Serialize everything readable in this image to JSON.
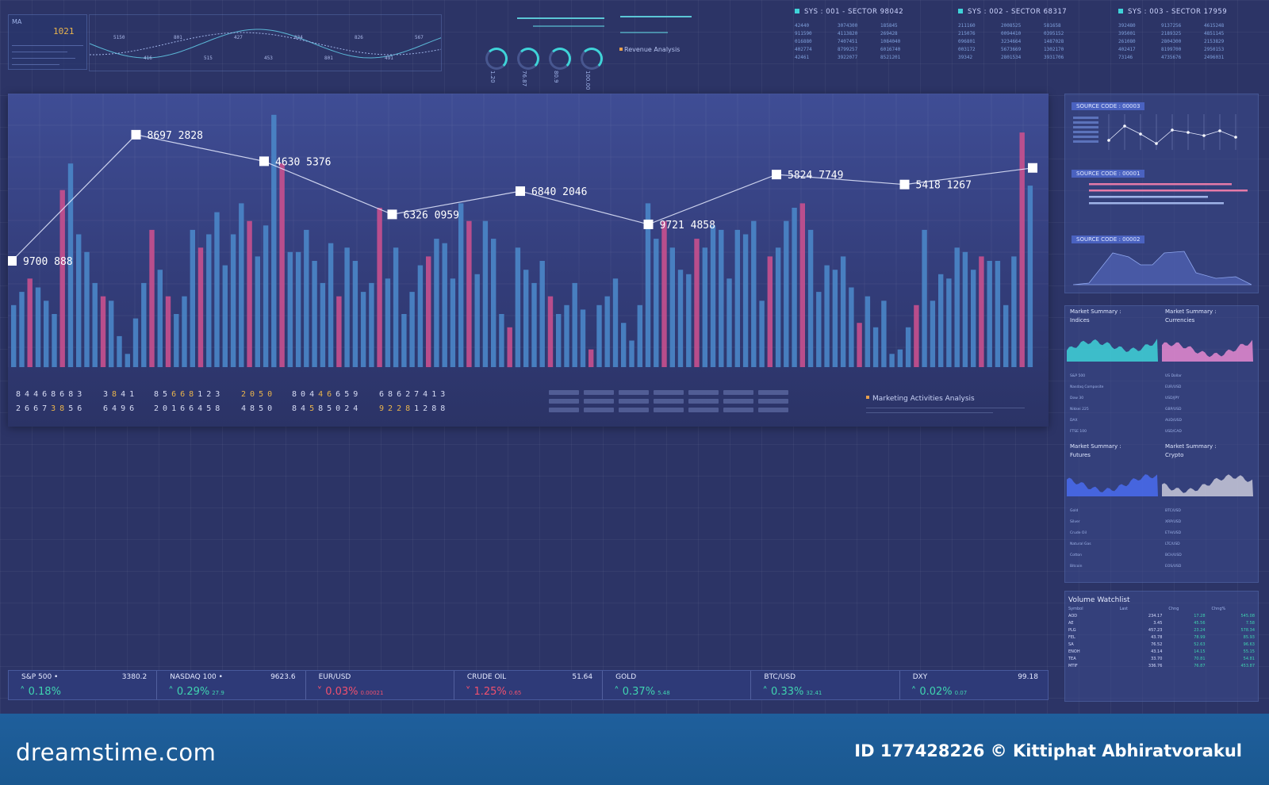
{
  "top_left_widget": {
    "title": "MA",
    "number": "1021"
  },
  "wave_widget": {
    "labels": [
      "5150",
      "416",
      "801",
      "515",
      "427",
      "453",
      "834",
      "801",
      "826",
      "491",
      "567"
    ]
  },
  "gauges": {
    "values": [
      "1.20",
      "76.87",
      "80.9",
      "100.00"
    ]
  },
  "revenue": {
    "title": "Revenue Analysis"
  },
  "sectors": [
    {
      "header": "SYS : 001 - SECTOR 98042",
      "rows": [
        [
          "42440",
          "3074300",
          "185845"
        ],
        [
          "911590",
          "4113820",
          "269428"
        ],
        [
          "016880",
          "7407451",
          "1084040"
        ],
        [
          "402774",
          "8799257",
          "6016740"
        ],
        [
          "42461",
          "3922077",
          "8521201"
        ]
      ]
    },
    {
      "header": "SYS : 002 - SECTOR 68317",
      "rows": [
        [
          "211160",
          "2008525",
          "581658"
        ],
        [
          "215076",
          "0094410",
          "0395152"
        ],
        [
          "096801",
          "3234664",
          "1487028"
        ],
        [
          "003172",
          "5673669",
          "1302170"
        ],
        [
          "39342",
          "2801534",
          "3931706"
        ]
      ]
    },
    {
      "header": "SYS : 003 - SECTOR 17959",
      "rows": [
        [
          "392480",
          "9137256",
          "4615248"
        ],
        [
          "395001",
          "2189325",
          "4851145"
        ],
        [
          "261080",
          "2804300",
          "2153829"
        ],
        [
          "402417",
          "8199700",
          "2950153"
        ],
        [
          "73146",
          "4735676",
          "2496031"
        ]
      ]
    }
  ],
  "main_chart": {
    "chart_data": {
      "type": "bar",
      "bars_values": [
        14,
        17,
        20,
        18,
        15,
        12,
        40,
        46,
        30,
        26,
        19,
        16,
        15,
        7,
        3,
        11,
        19,
        31,
        22,
        16,
        12,
        16,
        31,
        27,
        30,
        35,
        23,
        30,
        37,
        33,
        25,
        32,
        57,
        46,
        26,
        26,
        31,
        24,
        19,
        28,
        16,
        27,
        24,
        17,
        19,
        36,
        20,
        27,
        12,
        17,
        23,
        25,
        29,
        28,
        20,
        37,
        33,
        21,
        33,
        29,
        12,
        9,
        27,
        22,
        19,
        24,
        16,
        12,
        14,
        19,
        13,
        4,
        14,
        16,
        20,
        10,
        6,
        14,
        37,
        29,
        33,
        27,
        22,
        21,
        29,
        27,
        32,
        31,
        20,
        31,
        30,
        33,
        15,
        25,
        27,
        33,
        36,
        37,
        31,
        17,
        23,
        22,
        25,
        18,
        10,
        16,
        9,
        15,
        3,
        4,
        9,
        14,
        31,
        15,
        21,
        20,
        27,
        26,
        22,
        25,
        24,
        24,
        14,
        25,
        53,
        41
      ],
      "line_values": [
        "9700 888",
        "8697 2828",
        "4630 5376",
        "6326 0959",
        "6840 2046",
        "9721 4858",
        "5824 7749",
        "5418 1267",
        ""
      ],
      "line_y": [
        3.2,
        7.0,
        6.2,
        4.6,
        5.3,
        4.3,
        5.8,
        5.5,
        6.0
      ]
    },
    "digit_rows": [
      {
        "text": "84468683",
        "highlight": []
      },
      {
        "text": "2667",
        "tail": "3856",
        "highlight": [
          4,
          5,
          6,
          7
        ]
      }
    ],
    "digit_groups": [
      {
        "a": "84468683",
        "b": "26673856",
        "ha": [],
        "hb": [
          4,
          5
        ]
      },
      {
        "a": "3841",
        "b": "6496",
        "ha": [
          1
        ],
        "hb": []
      },
      {
        "a": "85668123",
        "b": "20166458",
        "ha": [
          2,
          3,
          4
        ],
        "hb": []
      },
      {
        "a": "2050",
        "b": "4850",
        "ha": [
          0,
          1,
          2,
          3
        ],
        "hb": []
      },
      {
        "a": "80446659",
        "b": "84585024",
        "ha": [
          3,
          4
        ],
        "hb": [
          2
        ]
      },
      {
        "a": "68627413",
        "b": "92281288",
        "ha": [],
        "hb": [
          0,
          1,
          2,
          3
        ]
      }
    ],
    "marketing_title": "Marketing Activities Analysis"
  },
  "source_panel": {
    "labels": [
      "SOURCE CODE : 00003",
      "SOURCE CODE : 00001",
      "SOURCE CODE : 00002"
    ]
  },
  "market_summary": [
    {
      "title": "Market Summary :",
      "sub": "Indices",
      "color": "#3fd3d8",
      "rows": [
        "S&P 500",
        "Nasdaq Composite",
        "Dow 30",
        "Nikkei 225",
        "DAX",
        "FTSE 100"
      ]
    },
    {
      "title": "Market Summary :",
      "sub": "Currencies",
      "color": "#e68ad0",
      "rows": [
        "US Dollar",
        "EUR/USD",
        "USD/JPY",
        "GBP/USD",
        "AUD/USD",
        "USD/CAD"
      ]
    },
    {
      "title": "Market Summary :",
      "sub": "Futures",
      "color": "#4a6cf0",
      "rows": [
        "Gold",
        "Silver",
        "Crude Oil",
        "Natural Gas",
        "Cotton",
        "Bitcoin"
      ]
    },
    {
      "title": "Market Summary :",
      "sub": "Crypto",
      "color": "#c9c9d9",
      "rows": [
        "BTC/USD",
        "XRP/USD",
        "ETH/USD",
        "LTC/USD",
        "BCH/USD",
        "EOS/USD"
      ]
    }
  ],
  "volume_watchlist": {
    "title": "Volume Watchlist",
    "headers": [
      "Symbol",
      "Last",
      "Chng",
      "Chng%"
    ],
    "rows": [
      [
        "AOD",
        "234.17",
        "17.28",
        "545.08"
      ],
      [
        "AE",
        "3.45",
        "45.56",
        "7.58"
      ],
      [
        "PLG",
        "457.23",
        "23.24",
        "578.34"
      ],
      [
        "FEL",
        "43.78",
        "78.99",
        "85.93"
      ],
      [
        "SA",
        "76.52",
        "52.63",
        "96.63"
      ],
      [
        "ENOH",
        "43.14",
        "14.15",
        "55.15"
      ],
      [
        "TEA",
        "33.70",
        "70.81",
        "54.81"
      ],
      [
        "MTIF",
        "336.76",
        "76.87",
        "453.87"
      ]
    ]
  },
  "ticker": [
    {
      "name": "S&P 500 •",
      "price": "3380.2",
      "pct": "0.18%",
      "sub": "",
      "dir": "up"
    },
    {
      "name": "NASDAQ 100 •",
      "price": "9623.6",
      "pct": "0.29%",
      "sub": "27.9",
      "dir": "up"
    },
    {
      "name": "EUR/USD",
      "price": "",
      "pct": "0.03%",
      "sub": "0.00021",
      "dir": "down"
    },
    {
      "name": "CRUDE OIL",
      "price": "51.64",
      "pct": "1.25%",
      "sub": "0.65",
      "dir": "down"
    },
    {
      "name": "GOLD",
      "price": "",
      "pct": "0.37%",
      "sub": "5.48",
      "dir": "up"
    },
    {
      "name": "BTC/USD",
      "price": "",
      "pct": "0.33%",
      "sub": "32.41",
      "dir": "up"
    },
    {
      "name": "DXY",
      "price": "99.18",
      "pct": "0.02%",
      "sub": "0.07",
      "dir": "up"
    }
  ],
  "footer": {
    "logo": "dreamstime.com",
    "id": "ID 177428226 © Kittiphat Abhiratvorakul"
  },
  "colors": {
    "bar_blue": "#4a86c8",
    "bar_pink": "#c8508e",
    "accent": "#3fd3d8",
    "up": "#3fd3b0",
    "down": "#f0506e"
  }
}
